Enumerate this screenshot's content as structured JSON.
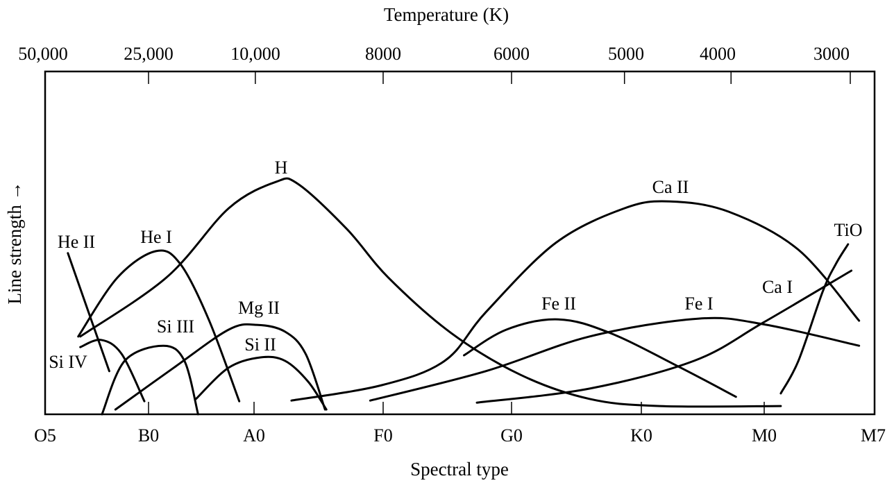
{
  "chart_data": {
    "type": "line",
    "title": "",
    "xlabel": "Spectral type",
    "ylabel": "Line strength →",
    "top_xlabel": "Temperature (K)",
    "x_categories": [
      "O5",
      "B0",
      "A0",
      "F0",
      "G0",
      "K0",
      "M0",
      "M7"
    ],
    "top_ticks": [
      {
        "x": 0,
        "label": "50,000"
      },
      {
        "x": 1,
        "label": "25,000"
      },
      {
        "x": 2.01,
        "label": "10,000"
      },
      {
        "x": 3,
        "label": "8000"
      },
      {
        "x": 4,
        "label": "6000"
      },
      {
        "x": 4.87,
        "label": "5000"
      },
      {
        "x": 5.73,
        "label": "4000"
      },
      {
        "x": 6.78,
        "label": "3000"
      }
    ],
    "xlim": [
      0,
      7
    ],
    "ylim": [
      0,
      100
    ],
    "grid": false,
    "series": [
      {
        "name": "H",
        "points": [
          [
            0.34,
            22.7
          ],
          [
            1.17,
            39.9
          ],
          [
            1.76,
            60.1
          ],
          [
            2.17,
            67.8
          ],
          [
            2.34,
            67.2
          ],
          [
            2.72,
            54.0
          ],
          [
            3.04,
            39.9
          ],
          [
            3.53,
            23.7
          ],
          [
            4.07,
            11.5
          ],
          [
            4.6,
            4.5
          ],
          [
            5.15,
            2.4
          ],
          [
            6.15,
            2.4
          ]
        ]
      },
      {
        "name": "Ca II",
        "points": [
          [
            2.29,
            4.0
          ],
          [
            2.99,
            8.5
          ],
          [
            3.48,
            15.6
          ],
          [
            3.8,
            29.8
          ],
          [
            4.34,
            50.0
          ],
          [
            4.87,
            60.1
          ],
          [
            5.23,
            62.1
          ],
          [
            5.71,
            59.1
          ],
          [
            6.31,
            48.0
          ],
          [
            6.86,
            27.3
          ]
        ]
      },
      {
        "name": "He II",
        "points": [
          [
            0.22,
            47.0
          ],
          [
            0.62,
            12.6
          ]
        ]
      },
      {
        "name": "He I",
        "points": [
          [
            0.32,
            22.7
          ],
          [
            0.7,
            39.9
          ],
          [
            1.07,
            47.6
          ],
          [
            1.3,
            43.9
          ],
          [
            1.57,
            27.7
          ],
          [
            1.86,
            3.8
          ]
        ]
      },
      {
        "name": "Si IV",
        "points": [
          [
            0.34,
            19.6
          ],
          [
            0.54,
            21.7
          ],
          [
            0.74,
            17.6
          ],
          [
            0.96,
            3.8
          ]
        ]
      },
      {
        "name": "Si III",
        "points": [
          [
            0.55,
            0
          ],
          [
            0.77,
            15.6
          ],
          [
            1.14,
            20.0
          ],
          [
            1.34,
            15.6
          ],
          [
            1.47,
            0
          ]
        ]
      },
      {
        "name": "Mg II",
        "points": [
          [
            0.68,
            1.4
          ],
          [
            1.24,
            13.6
          ],
          [
            1.76,
            24.7
          ],
          [
            2.02,
            26.1
          ],
          [
            2.24,
            24.1
          ],
          [
            2.4,
            17.6
          ],
          [
            2.55,
            1.4
          ]
        ]
      },
      {
        "name": "Si II",
        "points": [
          [
            1.45,
            4.5
          ],
          [
            1.76,
            13.6
          ],
          [
            2.05,
            16.6
          ],
          [
            2.24,
            15.6
          ],
          [
            2.42,
            9.5
          ],
          [
            2.56,
            1.4
          ]
        ]
      },
      {
        "name": "Fe II",
        "points": [
          [
            3.63,
            17.2
          ],
          [
            3.96,
            24.7
          ],
          [
            4.36,
            27.7
          ],
          [
            4.76,
            23.7
          ],
          [
            5.32,
            13.6
          ],
          [
            5.77,
            5.1
          ]
        ]
      },
      {
        "name": "Fe I",
        "points": [
          [
            2.9,
            4.0
          ],
          [
            3.8,
            12.6
          ],
          [
            4.6,
            22.7
          ],
          [
            5.46,
            27.9
          ],
          [
            5.99,
            26.3
          ],
          [
            6.86,
            20.0
          ]
        ]
      },
      {
        "name": "Ca I",
        "points": [
          [
            3.73,
            3.4
          ],
          [
            4.6,
            7.5
          ],
          [
            5.43,
            15.6
          ],
          [
            5.99,
            26.7
          ],
          [
            6.79,
            41.9
          ]
        ]
      },
      {
        "name": "TiO",
        "points": [
          [
            6.15,
            6.1
          ],
          [
            6.31,
            15.6
          ],
          [
            6.53,
            35.8
          ],
          [
            6.65,
            43.9
          ],
          [
            6.76,
            49.6
          ]
        ]
      }
    ]
  }
}
